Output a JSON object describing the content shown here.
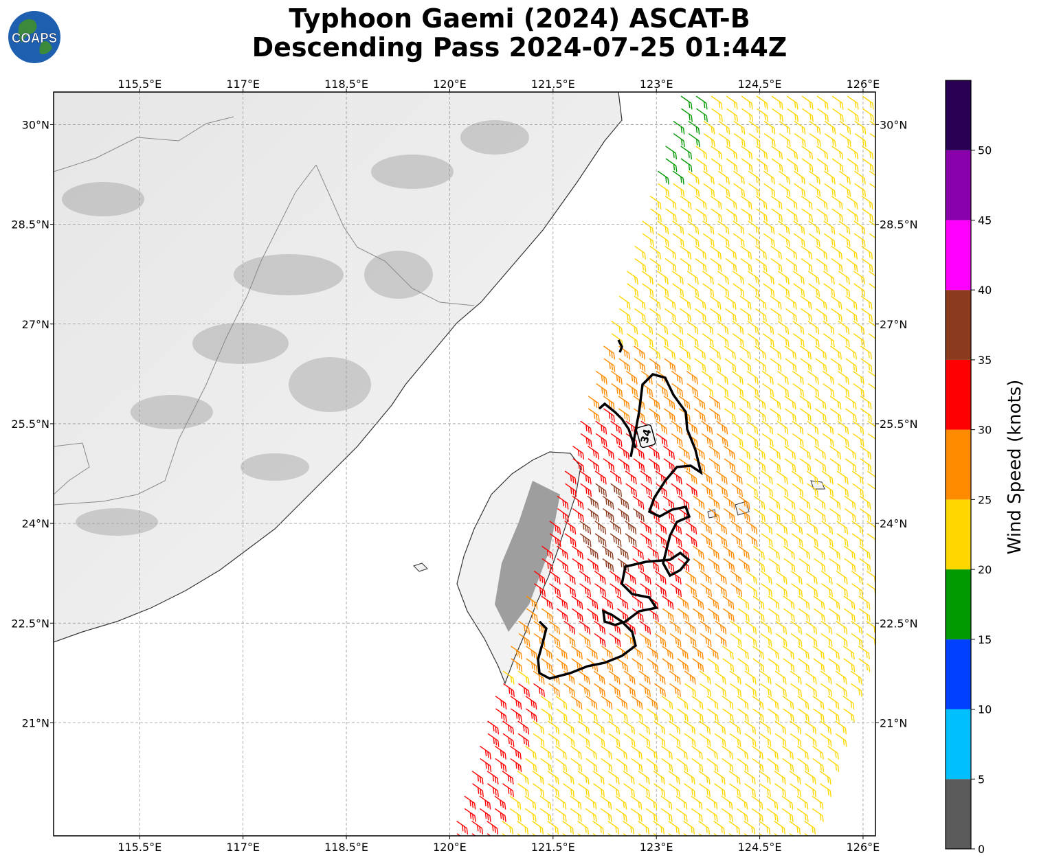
{
  "title": {
    "line1": "Typhoon Gaemi (2024) ASCAT-B",
    "line2": "Descending Pass 2024-07-25 01:44Z"
  },
  "logo": {
    "text": "COAPS",
    "colors": {
      "ocean": "#1f5fb0",
      "land": "#3b8a3b"
    }
  },
  "map": {
    "lon_range": [
      114.25,
      126.18
    ],
    "lat_range": [
      19.3,
      30.49
    ],
    "lon_ticks": [
      "115.5°E",
      "117°E",
      "118.5°E",
      "120°E",
      "121.5°E",
      "123°E",
      "124.5°E",
      "126°E"
    ],
    "lat_ticks": [
      "30°N",
      "28.5°N",
      "27°N",
      "25.5°N",
      "24°N",
      "22.5°N",
      "21°N"
    ],
    "gridlines": true,
    "contour_label": "34"
  },
  "colorbar": {
    "label": "Wind Speed (knots)",
    "ticks": [
      "0",
      "5",
      "10",
      "15",
      "20",
      "25",
      "30",
      "35",
      "40",
      "45",
      "50"
    ],
    "bins": [
      {
        "from": 0,
        "to": 5,
        "color": "#5a5a5a"
      },
      {
        "from": 5,
        "to": 10,
        "color": "#00bfff"
      },
      {
        "from": 10,
        "to": 15,
        "color": "#0040ff"
      },
      {
        "from": 15,
        "to": 20,
        "color": "#009900"
      },
      {
        "from": 20,
        "to": 25,
        "color": "#ffd700"
      },
      {
        "from": 25,
        "to": 30,
        "color": "#ff8c00"
      },
      {
        "from": 30,
        "to": 35,
        "color": "#ff0000"
      },
      {
        "from": 35,
        "to": 40,
        "color": "#8b3a1e"
      },
      {
        "from": 40,
        "to": 45,
        "color": "#ff00ff"
      },
      {
        "from": 45,
        "to": 50,
        "color": "#8800aa"
      },
      {
        "from": 50,
        "to": 55,
        "color": "#2a0055"
      }
    ]
  }
}
